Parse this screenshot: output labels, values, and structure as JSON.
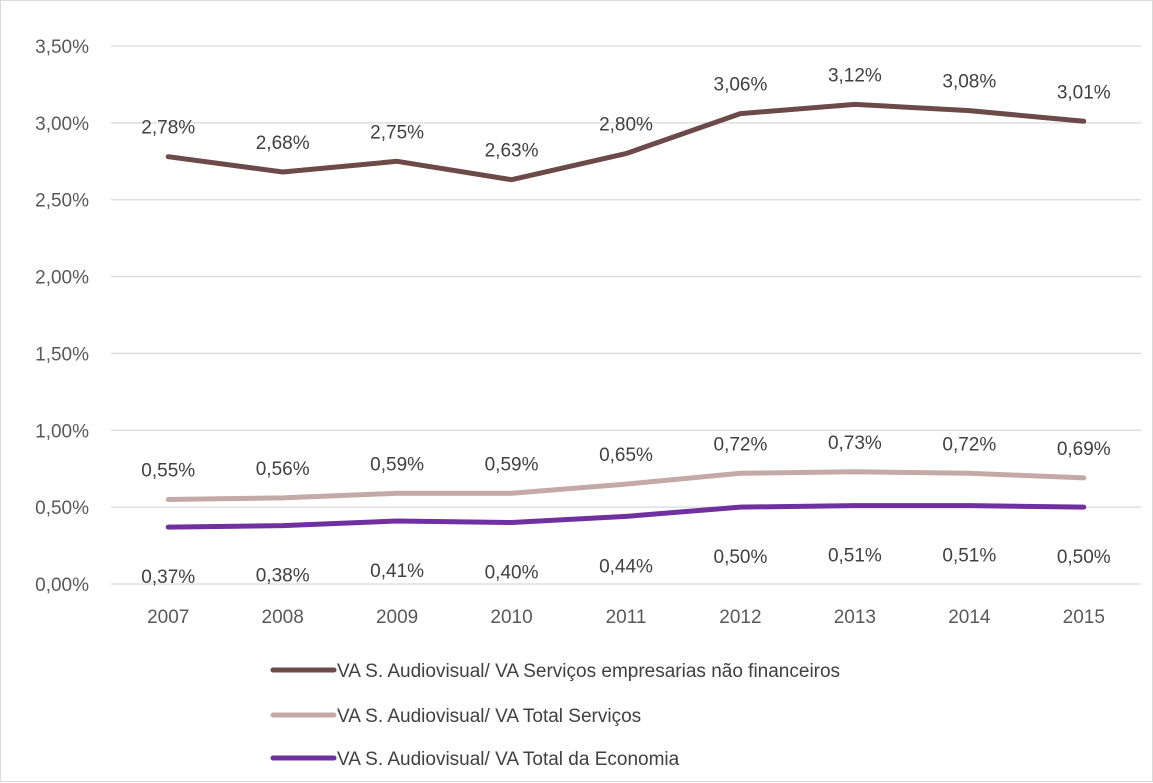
{
  "chart_data": {
    "type": "line",
    "categories": [
      "2007",
      "2008",
      "2009",
      "2010",
      "2011",
      "2012",
      "2013",
      "2014",
      "2015"
    ],
    "ylim": [
      0,
      3.5
    ],
    "yticks": [
      0,
      0.5,
      1.0,
      1.5,
      2.0,
      2.5,
      3.0,
      3.5
    ],
    "ytick_labels": [
      "0,00%",
      "0,50%",
      "1,00%",
      "1,50%",
      "2,00%",
      "2,50%",
      "3,00%",
      "3,50%"
    ],
    "grid": true,
    "legend_position": "bottom",
    "series": [
      {
        "name": "VA S. Audiovisual/ VA Serviços empresarias não financeiros",
        "color": "#6b4a47",
        "values": [
          2.78,
          2.68,
          2.75,
          2.63,
          2.8,
          3.06,
          3.12,
          3.08,
          3.01
        ],
        "labels": [
          "2,78%",
          "2,68%",
          "2,75%",
          "2,63%",
          "2,80%",
          "3,06%",
          "3,12%",
          "3,08%",
          "3,01%"
        ],
        "label_position": "above"
      },
      {
        "name": "VA S. Audiovisual/ VA Total Serviços",
        "color": "#c4a9a6",
        "values": [
          0.55,
          0.56,
          0.59,
          0.59,
          0.65,
          0.72,
          0.73,
          0.72,
          0.69
        ],
        "labels": [
          "0,55%",
          "0,56%",
          "0,59%",
          "0,59%",
          "0,65%",
          "0,72%",
          "0,73%",
          "0,72%",
          "0,69%"
        ],
        "label_position": "above"
      },
      {
        "name": "VA S. Audiovisual/ VA Total da Economia",
        "color": "#7030a0",
        "values": [
          0.37,
          0.38,
          0.41,
          0.4,
          0.44,
          0.5,
          0.51,
          0.51,
          0.5
        ],
        "labels": [
          "0,37%",
          "0,38%",
          "0,41%",
          "0,40%",
          "0,44%",
          "0,50%",
          "0,51%",
          "0,51%",
          "0,50%"
        ],
        "label_position": "below"
      }
    ]
  }
}
